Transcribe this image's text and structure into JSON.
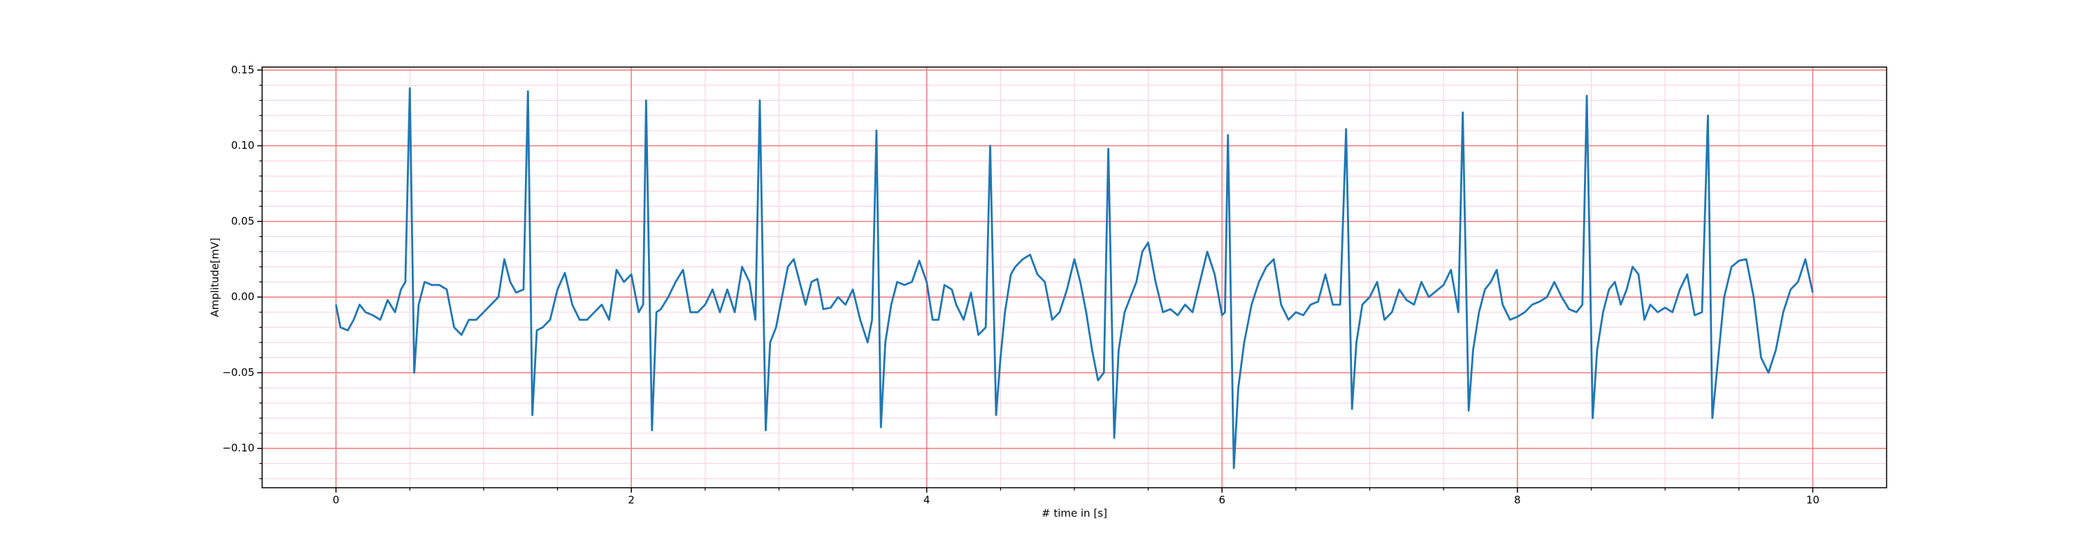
{
  "chart_data": {
    "type": "line",
    "xlabel": "# time in [s]",
    "ylabel": "Amplitude[mV]",
    "color": "#1f77b4",
    "grid": true,
    "grid_color": "#f08080",
    "minor_grid_color": "#fbd3e3",
    "xlim": [
      -0.5,
      10.5
    ],
    "ylim": [
      -0.126,
      0.152
    ],
    "xticks": [
      0,
      2,
      4,
      6,
      8,
      10
    ],
    "yticks": [
      {
        "value": -0.1,
        "label": "−0.10"
      },
      {
        "value": -0.05,
        "label": "−0.05"
      },
      {
        "value": 0,
        "label": "0.00"
      },
      {
        "value": 0.05,
        "label": "0.05"
      },
      {
        "value": 0.1,
        "label": "0.10"
      },
      {
        "value": 0.15,
        "label": "0.15"
      }
    ],
    "xminorticks": [
      0.5,
      1,
      1.5,
      2.5,
      3,
      3.5,
      4.5,
      5,
      5.5,
      6.5,
      7,
      7.5,
      8.5,
      9,
      9.5
    ],
    "yminorticks": [
      -0.12,
      -0.11,
      -0.09,
      -0.08,
      -0.07,
      -0.06,
      -0.04,
      -0.03,
      -0.02,
      -0.01,
      0.01,
      0.02,
      0.03,
      0.04,
      0.06,
      0.07,
      0.08,
      0.09,
      0.11,
      0.12,
      0.13,
      0.14
    ],
    "x": [
      0,
      0.03,
      0.08,
      0.12,
      0.16,
      0.2,
      0.25,
      0.3,
      0.35,
      0.4,
      0.44,
      0.47,
      0.5,
      0.53,
      0.56,
      0.6,
      0.65,
      0.7,
      0.75,
      0.8,
      0.85,
      0.9,
      0.95,
      1.0,
      1.05,
      1.1,
      1.14,
      1.18,
      1.22,
      1.27,
      1.3,
      1.33,
      1.36,
      1.4,
      1.45,
      1.5,
      1.55,
      1.6,
      1.65,
      1.7,
      1.75,
      1.8,
      1.85,
      1.9,
      1.95,
      2.0,
      2.05,
      2.08,
      2.1,
      2.14,
      2.17,
      2.2,
      2.25,
      2.3,
      2.35,
      2.4,
      2.45,
      2.5,
      2.55,
      2.6,
      2.65,
      2.7,
      2.75,
      2.8,
      2.84,
      2.87,
      2.91,
      2.94,
      2.98,
      3.02,
      3.06,
      3.1,
      3.14,
      3.18,
      3.22,
      3.26,
      3.3,
      3.35,
      3.4,
      3.45,
      3.5,
      3.55,
      3.6,
      3.63,
      3.66,
      3.69,
      3.72,
      3.76,
      3.8,
      3.85,
      3.9,
      3.95,
      4.0,
      4.04,
      4.08,
      4.12,
      4.17,
      4.2,
      4.25,
      4.3,
      4.35,
      4.4,
      4.43,
      4.47,
      4.5,
      4.53,
      4.57,
      4.6,
      4.65,
      4.7,
      4.75,
      4.8,
      4.85,
      4.9,
      4.95,
      5.0,
      5.04,
      5.08,
      5.12,
      5.16,
      5.2,
      5.23,
      5.27,
      5.3,
      5.34,
      5.38,
      5.42,
      5.46,
      5.5,
      5.55,
      5.6,
      5.65,
      5.7,
      5.75,
      5.8,
      5.85,
      5.9,
      5.95,
      6.0,
      6.02,
      6.04,
      6.08,
      6.11,
      6.15,
      6.2,
      6.25,
      6.3,
      6.35,
      6.4,
      6.45,
      6.5,
      6.55,
      6.6,
      6.65,
      6.7,
      6.75,
      6.8,
      6.84,
      6.88,
      6.91,
      6.95,
      7.0,
      7.05,
      7.1,
      7.15,
      7.2,
      7.25,
      7.3,
      7.35,
      7.4,
      7.45,
      7.5,
      7.55,
      7.6,
      7.63,
      7.67,
      7.7,
      7.74,
      7.78,
      7.82,
      7.86,
      7.9,
      7.95,
      8.0,
      8.05,
      8.1,
      8.15,
      8.2,
      8.25,
      8.3,
      8.35,
      8.4,
      8.44,
      8.47,
      8.51,
      8.54,
      8.58,
      8.62,
      8.66,
      8.7,
      8.74,
      8.78,
      8.82,
      8.86,
      8.9,
      8.95,
      9.0,
      9.05,
      9.1,
      9.15,
      9.2,
      9.25,
      9.29,
      9.32,
      9.36,
      9.4,
      9.45,
      9.5,
      9.55,
      9.6,
      9.65,
      9.7,
      9.75,
      9.8,
      9.85,
      9.9,
      9.95,
      10.0
    ],
    "values": [
      -0.005,
      -0.02,
      -0.022,
      -0.015,
      -0.005,
      -0.01,
      -0.012,
      -0.015,
      -0.002,
      -0.01,
      0.005,
      0.01,
      0.138,
      -0.05,
      -0.005,
      0.01,
      0.008,
      0.008,
      0.005,
      -0.02,
      -0.025,
      -0.015,
      -0.015,
      -0.01,
      -0.005,
      0.0,
      0.025,
      0.01,
      0.003,
      0.005,
      0.136,
      -0.078,
      -0.022,
      -0.02,
      -0.015,
      0.005,
      0.016,
      -0.005,
      -0.015,
      -0.015,
      -0.01,
      -0.005,
      -0.015,
      0.018,
      0.01,
      0.015,
      -0.01,
      -0.005,
      0.13,
      -0.088,
      -0.01,
      -0.008,
      0.0,
      0.01,
      0.018,
      -0.01,
      -0.01,
      -0.005,
      0.005,
      -0.01,
      0.005,
      -0.01,
      0.02,
      0.01,
      -0.015,
      0.13,
      -0.088,
      -0.03,
      -0.02,
      0.0,
      0.02,
      0.025,
      0.01,
      -0.005,
      0.01,
      0.012,
      -0.008,
      -0.007,
      0.0,
      -0.005,
      0.005,
      -0.015,
      -0.03,
      -0.015,
      0.11,
      -0.086,
      -0.03,
      -0.005,
      0.01,
      0.008,
      0.01,
      0.024,
      0.01,
      -0.015,
      -0.015,
      0.008,
      0.005,
      -0.005,
      -0.015,
      0.003,
      -0.025,
      -0.02,
      0.1,
      -0.078,
      -0.04,
      -0.01,
      0.015,
      0.02,
      0.025,
      0.028,
      0.015,
      0.01,
      -0.015,
      -0.01,
      0.005,
      0.025,
      0.01,
      -0.01,
      -0.035,
      -0.055,
      -0.05,
      0.098,
      -0.093,
      -0.035,
      -0.01,
      0.0,
      0.01,
      0.03,
      0.036,
      0.01,
      -0.01,
      -0.008,
      -0.012,
      -0.005,
      -0.01,
      0.01,
      0.03,
      0.015,
      -0.012,
      -0.01,
      0.107,
      -0.113,
      -0.06,
      -0.03,
      -0.005,
      0.01,
      0.02,
      0.025,
      -0.005,
      -0.015,
      -0.01,
      -0.012,
      -0.005,
      -0.003,
      0.015,
      -0.005,
      -0.005,
      0.111,
      -0.074,
      -0.03,
      -0.005,
      0.0,
      0.01,
      -0.015,
      -0.01,
      0.005,
      -0.002,
      -0.005,
      0.01,
      0.0,
      0.004,
      0.008,
      0.018,
      -0.01,
      0.122,
      -0.075,
      -0.035,
      -0.01,
      0.005,
      0.01,
      0.018,
      -0.005,
      -0.015,
      -0.013,
      -0.01,
      -0.005,
      -0.003,
      0.0,
      0.01,
      0.0,
      -0.008,
      -0.01,
      -0.005,
      0.133,
      -0.08,
      -0.035,
      -0.01,
      0.005,
      0.01,
      -0.005,
      0.005,
      0.02,
      0.015,
      -0.015,
      -0.005,
      -0.01,
      -0.007,
      -0.01,
      0.005,
      0.015,
      -0.012,
      -0.01,
      0.12,
      -0.08,
      -0.04,
      0.0,
      0.02,
      0.024,
      0.025,
      0.0,
      -0.04,
      -0.05,
      -0.035,
      -0.01,
      0.005,
      0.01,
      0.025,
      0.003
    ]
  }
}
